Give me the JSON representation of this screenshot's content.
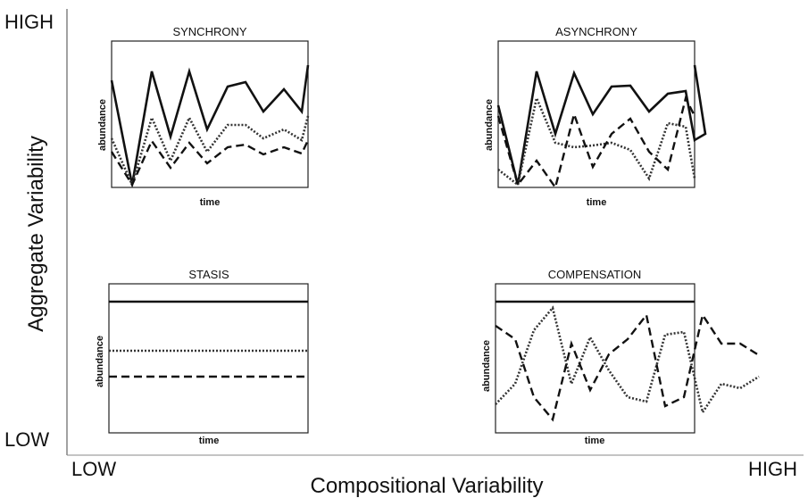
{
  "y_axis": {
    "label": "Aggregate Variability",
    "high": "HIGH",
    "low": "LOW"
  },
  "x_axis": {
    "label": "Compositional Variability",
    "low": "LOW",
    "high": "HIGH"
  },
  "panels": [
    {
      "title": "SYNCHRONY",
      "x_label": "time",
      "y_label": "abundance"
    },
    {
      "title": "ASYNCHRONY",
      "x_label": "time",
      "y_label": "abundance"
    },
    {
      "title": "STASIS",
      "x_label": "time",
      "y_label": "abundance"
    },
    {
      "title": "COMPENSATION",
      "x_label": "time",
      "y_label": "abundance"
    }
  ]
}
